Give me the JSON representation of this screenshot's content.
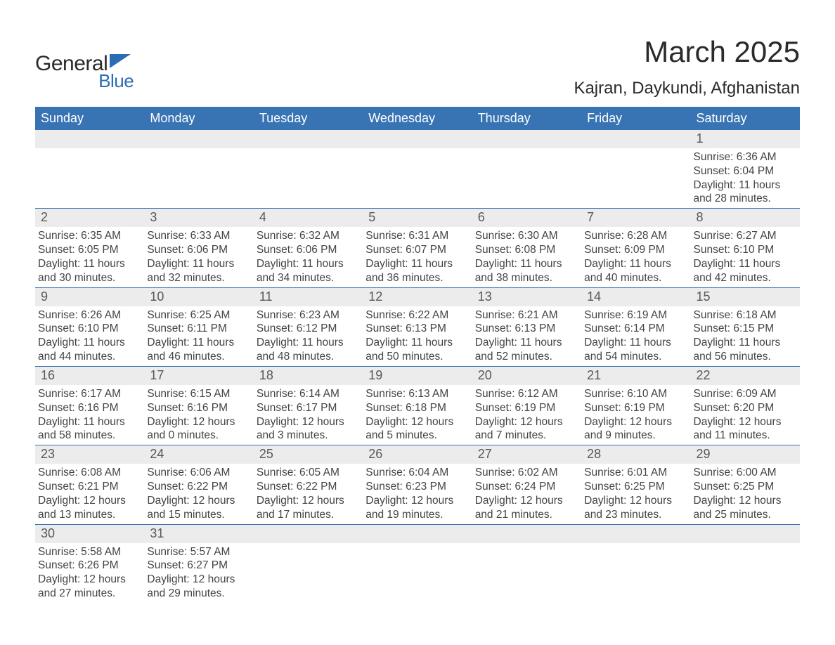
{
  "brand": {
    "general": "General",
    "blue": "Blue",
    "accent": "#2a6db5"
  },
  "title": {
    "month": "March 2025",
    "location": "Kajran, Daykundi, Afghanistan"
  },
  "calendar": {
    "header_bg": "#3874b4",
    "strip_bg": "#ececec",
    "border_color": "#3874b4",
    "weekdays": [
      "Sunday",
      "Monday",
      "Tuesday",
      "Wednesday",
      "Thursday",
      "Friday",
      "Saturday"
    ],
    "weeks": [
      [
        null,
        null,
        null,
        null,
        null,
        null,
        {
          "n": "1",
          "sunrise": "Sunrise: 6:36 AM",
          "sunset": "Sunset: 6:04 PM",
          "day1": "Daylight: 11 hours",
          "day2": "and 28 minutes."
        }
      ],
      [
        {
          "n": "2",
          "sunrise": "Sunrise: 6:35 AM",
          "sunset": "Sunset: 6:05 PM",
          "day1": "Daylight: 11 hours",
          "day2": "and 30 minutes."
        },
        {
          "n": "3",
          "sunrise": "Sunrise: 6:33 AM",
          "sunset": "Sunset: 6:06 PM",
          "day1": "Daylight: 11 hours",
          "day2": "and 32 minutes."
        },
        {
          "n": "4",
          "sunrise": "Sunrise: 6:32 AM",
          "sunset": "Sunset: 6:06 PM",
          "day1": "Daylight: 11 hours",
          "day2": "and 34 minutes."
        },
        {
          "n": "5",
          "sunrise": "Sunrise: 6:31 AM",
          "sunset": "Sunset: 6:07 PM",
          "day1": "Daylight: 11 hours",
          "day2": "and 36 minutes."
        },
        {
          "n": "6",
          "sunrise": "Sunrise: 6:30 AM",
          "sunset": "Sunset: 6:08 PM",
          "day1": "Daylight: 11 hours",
          "day2": "and 38 minutes."
        },
        {
          "n": "7",
          "sunrise": "Sunrise: 6:28 AM",
          "sunset": "Sunset: 6:09 PM",
          "day1": "Daylight: 11 hours",
          "day2": "and 40 minutes."
        },
        {
          "n": "8",
          "sunrise": "Sunrise: 6:27 AM",
          "sunset": "Sunset: 6:10 PM",
          "day1": "Daylight: 11 hours",
          "day2": "and 42 minutes."
        }
      ],
      [
        {
          "n": "9",
          "sunrise": "Sunrise: 6:26 AM",
          "sunset": "Sunset: 6:10 PM",
          "day1": "Daylight: 11 hours",
          "day2": "and 44 minutes."
        },
        {
          "n": "10",
          "sunrise": "Sunrise: 6:25 AM",
          "sunset": "Sunset: 6:11 PM",
          "day1": "Daylight: 11 hours",
          "day2": "and 46 minutes."
        },
        {
          "n": "11",
          "sunrise": "Sunrise: 6:23 AM",
          "sunset": "Sunset: 6:12 PM",
          "day1": "Daylight: 11 hours",
          "day2": "and 48 minutes."
        },
        {
          "n": "12",
          "sunrise": "Sunrise: 6:22 AM",
          "sunset": "Sunset: 6:13 PM",
          "day1": "Daylight: 11 hours",
          "day2": "and 50 minutes."
        },
        {
          "n": "13",
          "sunrise": "Sunrise: 6:21 AM",
          "sunset": "Sunset: 6:13 PM",
          "day1": "Daylight: 11 hours",
          "day2": "and 52 minutes."
        },
        {
          "n": "14",
          "sunrise": "Sunrise: 6:19 AM",
          "sunset": "Sunset: 6:14 PM",
          "day1": "Daylight: 11 hours",
          "day2": "and 54 minutes."
        },
        {
          "n": "15",
          "sunrise": "Sunrise: 6:18 AM",
          "sunset": "Sunset: 6:15 PM",
          "day1": "Daylight: 11 hours",
          "day2": "and 56 minutes."
        }
      ],
      [
        {
          "n": "16",
          "sunrise": "Sunrise: 6:17 AM",
          "sunset": "Sunset: 6:16 PM",
          "day1": "Daylight: 11 hours",
          "day2": "and 58 minutes."
        },
        {
          "n": "17",
          "sunrise": "Sunrise: 6:15 AM",
          "sunset": "Sunset: 6:16 PM",
          "day1": "Daylight: 12 hours",
          "day2": "and 0 minutes."
        },
        {
          "n": "18",
          "sunrise": "Sunrise: 6:14 AM",
          "sunset": "Sunset: 6:17 PM",
          "day1": "Daylight: 12 hours",
          "day2": "and 3 minutes."
        },
        {
          "n": "19",
          "sunrise": "Sunrise: 6:13 AM",
          "sunset": "Sunset: 6:18 PM",
          "day1": "Daylight: 12 hours",
          "day2": "and 5 minutes."
        },
        {
          "n": "20",
          "sunrise": "Sunrise: 6:12 AM",
          "sunset": "Sunset: 6:19 PM",
          "day1": "Daylight: 12 hours",
          "day2": "and 7 minutes."
        },
        {
          "n": "21",
          "sunrise": "Sunrise: 6:10 AM",
          "sunset": "Sunset: 6:19 PM",
          "day1": "Daylight: 12 hours",
          "day2": "and 9 minutes."
        },
        {
          "n": "22",
          "sunrise": "Sunrise: 6:09 AM",
          "sunset": "Sunset: 6:20 PM",
          "day1": "Daylight: 12 hours",
          "day2": "and 11 minutes."
        }
      ],
      [
        {
          "n": "23",
          "sunrise": "Sunrise: 6:08 AM",
          "sunset": "Sunset: 6:21 PM",
          "day1": "Daylight: 12 hours",
          "day2": "and 13 minutes."
        },
        {
          "n": "24",
          "sunrise": "Sunrise: 6:06 AM",
          "sunset": "Sunset: 6:22 PM",
          "day1": "Daylight: 12 hours",
          "day2": "and 15 minutes."
        },
        {
          "n": "25",
          "sunrise": "Sunrise: 6:05 AM",
          "sunset": "Sunset: 6:22 PM",
          "day1": "Daylight: 12 hours",
          "day2": "and 17 minutes."
        },
        {
          "n": "26",
          "sunrise": "Sunrise: 6:04 AM",
          "sunset": "Sunset: 6:23 PM",
          "day1": "Daylight: 12 hours",
          "day2": "and 19 minutes."
        },
        {
          "n": "27",
          "sunrise": "Sunrise: 6:02 AM",
          "sunset": "Sunset: 6:24 PM",
          "day1": "Daylight: 12 hours",
          "day2": "and 21 minutes."
        },
        {
          "n": "28",
          "sunrise": "Sunrise: 6:01 AM",
          "sunset": "Sunset: 6:25 PM",
          "day1": "Daylight: 12 hours",
          "day2": "and 23 minutes."
        },
        {
          "n": "29",
          "sunrise": "Sunrise: 6:00 AM",
          "sunset": "Sunset: 6:25 PM",
          "day1": "Daylight: 12 hours",
          "day2": "and 25 minutes."
        }
      ],
      [
        {
          "n": "30",
          "sunrise": "Sunrise: 5:58 AM",
          "sunset": "Sunset: 6:26 PM",
          "day1": "Daylight: 12 hours",
          "day2": "and 27 minutes."
        },
        {
          "n": "31",
          "sunrise": "Sunrise: 5:57 AM",
          "sunset": "Sunset: 6:27 PM",
          "day1": "Daylight: 12 hours",
          "day2": "and 29 minutes."
        },
        null,
        null,
        null,
        null,
        null
      ]
    ]
  }
}
